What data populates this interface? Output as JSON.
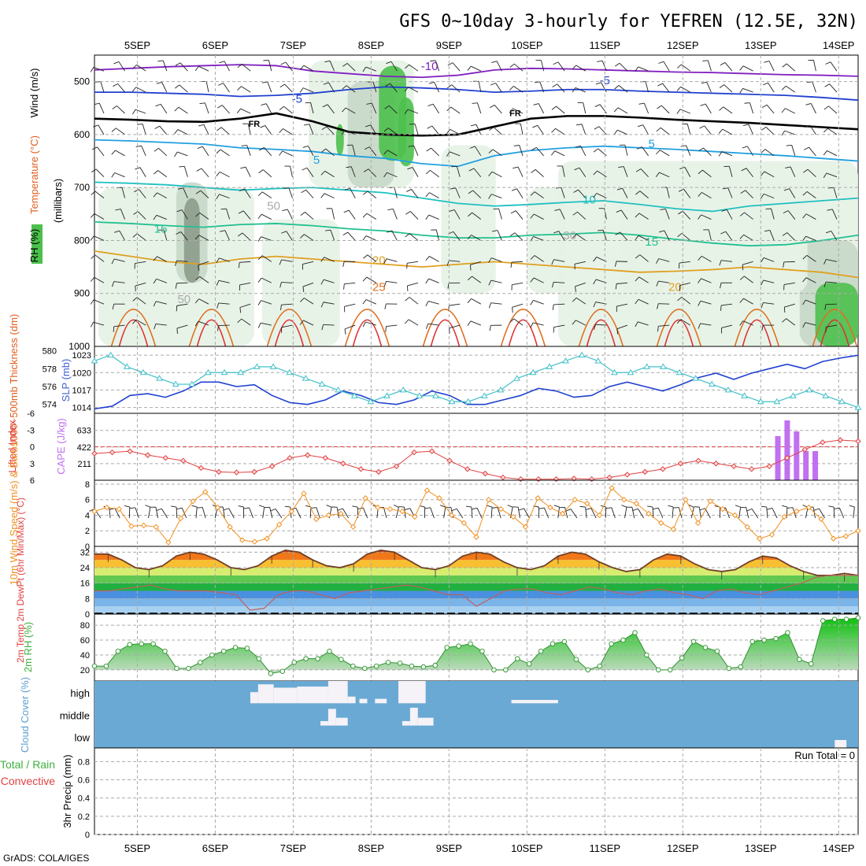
{
  "title": "GFS 0~10day 3-hourly for YEFREN (12.5E, 32N)",
  "footer": "GrADS: COLA/IGES",
  "days": [
    "5SEP",
    "6SEP",
    "7SEP",
    "8SEP",
    "9SEP",
    "10SEP",
    "11SEP",
    "12SEP",
    "13SEP",
    "14SEP"
  ],
  "colors": {
    "grid": "#aaaaaa",
    "rh_light": "#e6f2e6",
    "rh_mid": "#c8d8c8",
    "rh_dark": "#8c9c8c",
    "rh_green": "#4cc04c",
    "cloud_blue": "#6aa9d4",
    "cloud_white": "#f5f2f8",
    "slp": "#40c0c8",
    "thickness": "#2040d0",
    "lifted": "#e04040",
    "cape": "#c070f0",
    "wind": "#f09020",
    "rh2m": "#50c040"
  },
  "chart_data": [
    {
      "name": "upper-air",
      "type": "line",
      "ylabel_parts": [
        "RH (%)",
        "Temperature (°C)",
        "Wind (m/s)"
      ],
      "yaxis_title": "(millibars)",
      "yticks": [
        500,
        600,
        700,
        800,
        900,
        1000
      ],
      "contour_labels": [
        "-10",
        "-5",
        "FR",
        "5",
        "10",
        "15",
        "20",
        "25",
        "30",
        "50"
      ],
      "isotherms": [
        {
          "label": "-10",
          "color": "#8020c0",
          "values": [
            478,
            475,
            472,
            470,
            468,
            470,
            480,
            485,
            490,
            492,
            488,
            478,
            475,
            476,
            478,
            480,
            482,
            483,
            485,
            487,
            488,
            490
          ]
        },
        {
          "label": "-5",
          "color": "#2040d0",
          "values": [
            520,
            520,
            522,
            524,
            528,
            526,
            522,
            515,
            510,
            512,
            515,
            520,
            518,
            515,
            515,
            518,
            520,
            522,
            524,
            526,
            530,
            535
          ]
        },
        {
          "label": "FR",
          "color": "#000000",
          "values": [
            570,
            572,
            575,
            576,
            570,
            560,
            575,
            595,
            600,
            602,
            600,
            585,
            570,
            565,
            565,
            568,
            572,
            575,
            578,
            582,
            586,
            590
          ]
        },
        {
          "label": "5",
          "color": "#20a0e0",
          "values": [
            610,
            612,
            615,
            618,
            625,
            628,
            632,
            640,
            645,
            655,
            660,
            640,
            630,
            625,
            622,
            625,
            628,
            632,
            636,
            640,
            645,
            650
          ]
        },
        {
          "label": "10",
          "color": "#20c0c0",
          "values": [
            690,
            692,
            695,
            700,
            705,
            702,
            700,
            705,
            710,
            720,
            730,
            735,
            732,
            728,
            725,
            732,
            740,
            745,
            735,
            730,
            725,
            720
          ]
        },
        {
          "label": "15",
          "color": "#20c090",
          "values": [
            765,
            768,
            772,
            775,
            770,
            768,
            772,
            778,
            782,
            790,
            795,
            795,
            790,
            788,
            785,
            790,
            798,
            805,
            810,
            808,
            800,
            790
          ]
        },
        {
          "label": "20",
          "color": "#e0a020",
          "values": [
            820,
            830,
            840,
            845,
            835,
            830,
            835,
            840,
            845,
            850,
            845,
            840,
            845,
            850,
            855,
            860,
            858,
            855,
            850,
            855,
            860,
            870
          ]
        }
      ]
    },
    {
      "name": "slp-thickness",
      "type": "line",
      "ylabel": "SLP (mb)",
      "ylabel2": "1000~500mb Thickness (dm)",
      "slp_ticks": [
        1014,
        1017,
        1020,
        1023
      ],
      "thick_ticks": [
        574,
        576,
        578,
        580
      ],
      "series": [
        {
          "name": "SLP",
          "values": [
            1022,
            1023,
            1021,
            1020,
            1019,
            1018,
            1018,
            1020,
            1020,
            1020,
            1021,
            1021,
            1020,
            1019,
            1018,
            1017,
            1016,
            1015,
            1016,
            1017,
            1016,
            1016,
            1015,
            1015,
            1016,
            1017,
            1019,
            1020,
            1021,
            1022,
            1023,
            1022,
            1020,
            1020,
            1021,
            1021,
            1020,
            1019,
            1018,
            1017,
            1016,
            1015,
            1015,
            1016,
            1017,
            1016,
            1015,
            1014
          ]
        },
        {
          "name": "Thickness",
          "values": [
            573.5,
            573.8,
            575.0,
            575.2,
            574.8,
            575.5,
            576.5,
            576.5,
            576.0,
            576.2,
            575.0,
            574.2,
            574.0,
            574.5,
            575.5,
            575.0,
            574.2,
            574.0,
            574.5,
            575.5,
            575.0,
            574.0,
            574.0,
            574.5,
            575.0,
            575.8,
            575.5,
            574.8,
            575.0,
            576.0,
            576.5,
            576.0,
            575.5,
            576.2,
            577.0,
            577.5,
            576.8,
            577.5,
            578.0,
            578.5,
            578.0,
            578.8,
            579.2,
            579.5
          ]
        }
      ]
    },
    {
      "name": "lifted-cape",
      "type": "bar",
      "ylabel": "Lifted Index",
      "ylabel2": "CAPE (J/kg)",
      "li_ticks": [
        "6",
        "3",
        "0",
        "-3",
        "-6"
      ],
      "cape_ticks": [
        "211",
        "422",
        "633"
      ],
      "series": [
        {
          "name": "Lifted Index",
          "values": [
            1.2,
            1.0,
            0.8,
            1.5,
            2.0,
            2.5,
            3.8,
            4.5,
            4.6,
            4.5,
            3.5,
            2.0,
            1.5,
            2.0,
            3.0,
            4.0,
            4.5,
            3.5,
            1.0,
            0.8,
            2.5,
            4.0,
            4.8,
            5.5,
            5.8,
            5.8,
            5.8,
            5.7,
            5.8,
            5.5,
            5.0,
            4.5,
            4.0,
            3.0,
            2.5,
            3.0,
            3.5,
            4.0,
            3.5,
            2.0,
            0.5,
            -0.8,
            -1.2,
            -1.0
          ]
        },
        {
          "name": "CAPE",
          "bars": [
            {
              "day": 8.72,
              "value": 560
            },
            {
              "day": 8.84,
              "value": 760
            },
            {
              "day": 8.96,
              "value": 620
            },
            {
              "day": 9.08,
              "value": 370
            },
            {
              "day": 9.2,
              "value": 370
            }
          ]
        }
      ]
    },
    {
      "name": "wind10m",
      "type": "line",
      "ylabel": "10m Wind Speed (m/s) & Barbs",
      "yticks": [
        "0",
        "2",
        "4",
        "6",
        "8"
      ],
      "series": [
        {
          "name": "Speed",
          "values": [
            4.5,
            5.0,
            4.8,
            2.6,
            2.7,
            2.5,
            0.5,
            3.6,
            5.8,
            7.0,
            5.0,
            2.5,
            0.8,
            0.6,
            1.0,
            2.8,
            4.5,
            6.8,
            3.5,
            4.0,
            4.2,
            2.5,
            6.2,
            5.0,
            4.8,
            4.5,
            3.8,
            7.2,
            6.2,
            4.0,
            3.0,
            1.2,
            6.0,
            4.8,
            3.8,
            2.5,
            6.2,
            5.0,
            4.2,
            6.0,
            5.5,
            4.0,
            7.5,
            6.0,
            5.5,
            4.2,
            3.0,
            2.2,
            6.0,
            3.0,
            5.8,
            4.8,
            4.0,
            2.5,
            1.0,
            1.5,
            3.8,
            4.5,
            5.0,
            3.5,
            1.0,
            1.3,
            2.0
          ]
        }
      ]
    },
    {
      "name": "temp2m",
      "type": "area",
      "ylabel": "2m Temp 2m DewPt (6hr Min/Max) (°C)",
      "yticks": [
        "0",
        "8",
        "16",
        "24",
        "32"
      ],
      "series": [
        {
          "name": "Temp",
          "values": [
            31,
            31,
            28,
            24,
            23,
            25,
            30,
            32,
            31,
            28,
            24,
            23,
            25,
            30,
            33,
            32,
            28,
            25,
            24,
            26,
            31,
            33,
            32,
            28,
            24,
            23,
            25,
            30,
            32,
            31,
            27,
            24,
            23,
            25,
            30,
            32,
            31,
            27,
            24,
            22,
            23,
            28,
            31,
            30,
            26,
            23,
            22,
            23,
            27,
            30,
            29,
            25,
            22,
            20,
            20,
            21,
            20
          ]
        },
        {
          "name": "DewPt",
          "values": [
            12,
            12,
            13,
            14,
            15,
            13,
            12,
            12,
            12,
            11,
            10,
            2,
            3,
            10,
            12,
            12,
            10,
            8,
            11,
            12,
            13,
            14,
            15,
            14,
            12,
            10,
            10,
            4,
            8,
            12,
            13,
            13,
            11,
            10,
            12,
            14,
            13,
            11,
            10,
            12,
            13,
            11,
            10,
            8,
            12,
            13,
            11,
            10,
            12,
            14,
            16,
            19,
            20,
            20,
            20
          ]
        }
      ]
    },
    {
      "name": "rh2m",
      "type": "area",
      "ylabel": "2m RH (%)",
      "yticks": [
        "20",
        "40",
        "60",
        "80"
      ],
      "series": [
        {
          "name": "RH",
          "values": [
            25,
            25,
            45,
            54,
            55,
            55,
            45,
            22,
            22,
            30,
            40,
            45,
            50,
            49,
            35,
            15,
            18,
            30,
            35,
            35,
            45,
            34,
            25,
            22,
            25,
            30,
            29,
            25,
            24,
            26,
            50,
            52,
            55,
            45,
            20,
            20,
            35,
            28,
            45,
            55,
            58,
            34,
            20,
            25,
            55,
            60,
            70,
            40,
            20,
            20,
            36,
            58,
            50,
            45,
            22,
            24,
            58,
            60,
            62,
            70,
            34,
            28,
            86,
            88,
            88,
            90
          ]
        }
      ]
    },
    {
      "name": "cloud",
      "type": "area",
      "ylabel": "Cloud Cover (%)",
      "levels": [
        "high",
        "middle",
        "low"
      ],
      "series": [
        {
          "name": "high",
          "segments": [
            [
              1.95,
              2.05,
              0.5
            ],
            [
              2.05,
              2.25,
              0.85
            ],
            [
              2.25,
              2.55,
              0.7
            ],
            [
              2.55,
              2.95,
              0.75
            ],
            [
              2.95,
              3.2,
              1.0
            ],
            [
              3.2,
              3.3,
              0.3
            ],
            [
              3.35,
              3.45,
              0.2
            ],
            [
              3.55,
              3.7,
              0.2
            ],
            [
              3.85,
              4.2,
              1.0
            ],
            [
              5.3,
              5.9,
              0.15
            ]
          ]
        },
        {
          "name": "middle",
          "segments": [
            [
              2.85,
              2.95,
              0.2
            ],
            [
              2.95,
              3.05,
              0.75
            ],
            [
              3.05,
              3.2,
              0.35
            ],
            [
              3.9,
              4.0,
              0.2
            ],
            [
              4.0,
              4.1,
              0.8
            ],
            [
              4.1,
              4.3,
              0.35
            ]
          ]
        },
        {
          "name": "low",
          "segments": [
            [
              9.45,
              9.6,
              0.35
            ]
          ]
        }
      ]
    },
    {
      "name": "precip",
      "type": "bar",
      "ylabel": "3hr Precip (mm)",
      "legend_total": "Total / Rain",
      "legend_conv": "Convective",
      "run_total": "Run Total = 0",
      "yticks": [
        "0",
        "0.2",
        "0.4",
        "0.6",
        "0.8"
      ],
      "values": []
    }
  ]
}
